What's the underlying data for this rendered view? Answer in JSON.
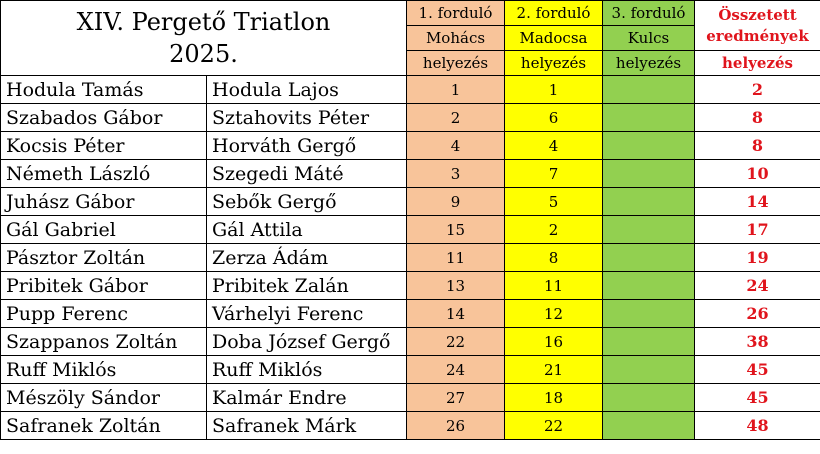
{
  "title": {
    "line1": "XIV. Pergető Triatlon",
    "line2": "2025."
  },
  "rounds": [
    {
      "label": "1. forduló",
      "place": "Mohács",
      "unit": "helyezés"
    },
    {
      "label": "2. forduló",
      "place": "Madocsa",
      "unit": "helyezés"
    },
    {
      "label": "3. forduló",
      "place": "Kulcs",
      "unit": "helyezés"
    }
  ],
  "total_header": {
    "line1": "Összetett",
    "line2": "eredmények",
    "unit": "helyezés"
  },
  "colors": {
    "round1": "#f8c49a",
    "round2": "#ffff00",
    "round3": "#92d050",
    "total_text": "#e0141c"
  },
  "rows": [
    {
      "name1": "Hodula Tamás",
      "name2": "Hodula Lajos",
      "r1": "1",
      "r2": "1",
      "r3": "",
      "total": "2"
    },
    {
      "name1": "Szabados Gábor",
      "name2": "Sztahovits Péter",
      "r1": "2",
      "r2": "6",
      "r3": "",
      "total": "8"
    },
    {
      "name1": "Kocsis Péter",
      "name2": "Horváth Gergő",
      "r1": "4",
      "r2": "4",
      "r3": "",
      "total": "8"
    },
    {
      "name1": "Németh László",
      "name2": "Szegedi Máté",
      "r1": "3",
      "r2": "7",
      "r3": "",
      "total": "10"
    },
    {
      "name1": "Juhász Gábor",
      "name2": "Sebők Gergő",
      "r1": "9",
      "r2": "5",
      "r3": "",
      "total": "14"
    },
    {
      "name1": "Gál Gabriel",
      "name2": "Gál Attila",
      "r1": "15",
      "r2": "2",
      "r3": "",
      "total": "17"
    },
    {
      "name1": "Pásztor Zoltán",
      "name2": "Zerza Ádám",
      "r1": "11",
      "r2": "8",
      "r3": "",
      "total": "19"
    },
    {
      "name1": "Pribitek Gábor",
      "name2": "Pribitek Zalán",
      "r1": "13",
      "r2": "11",
      "r3": "",
      "total": "24"
    },
    {
      "name1": "Pupp Ferenc",
      "name2": "Várhelyi Ferenc",
      "r1": "14",
      "r2": "12",
      "r3": "",
      "total": "26"
    },
    {
      "name1": "Szappanos Zoltán",
      "name2": "Doba József Gergő",
      "r1": "22",
      "r2": "16",
      "r3": "",
      "total": "38"
    },
    {
      "name1": "Ruff Miklós",
      "name2": "Ruff Miklós",
      "r1": "24",
      "r2": "21",
      "r3": "",
      "total": "45"
    },
    {
      "name1": "Mészöly Sándor",
      "name2": "Kalmár Endre",
      "r1": "27",
      "r2": "18",
      "r3": "",
      "total": "45"
    },
    {
      "name1": "Safranek Zoltán",
      "name2": "Safranek Márk",
      "r1": "26",
      "r2": "22",
      "r3": "",
      "total": "48"
    }
  ]
}
